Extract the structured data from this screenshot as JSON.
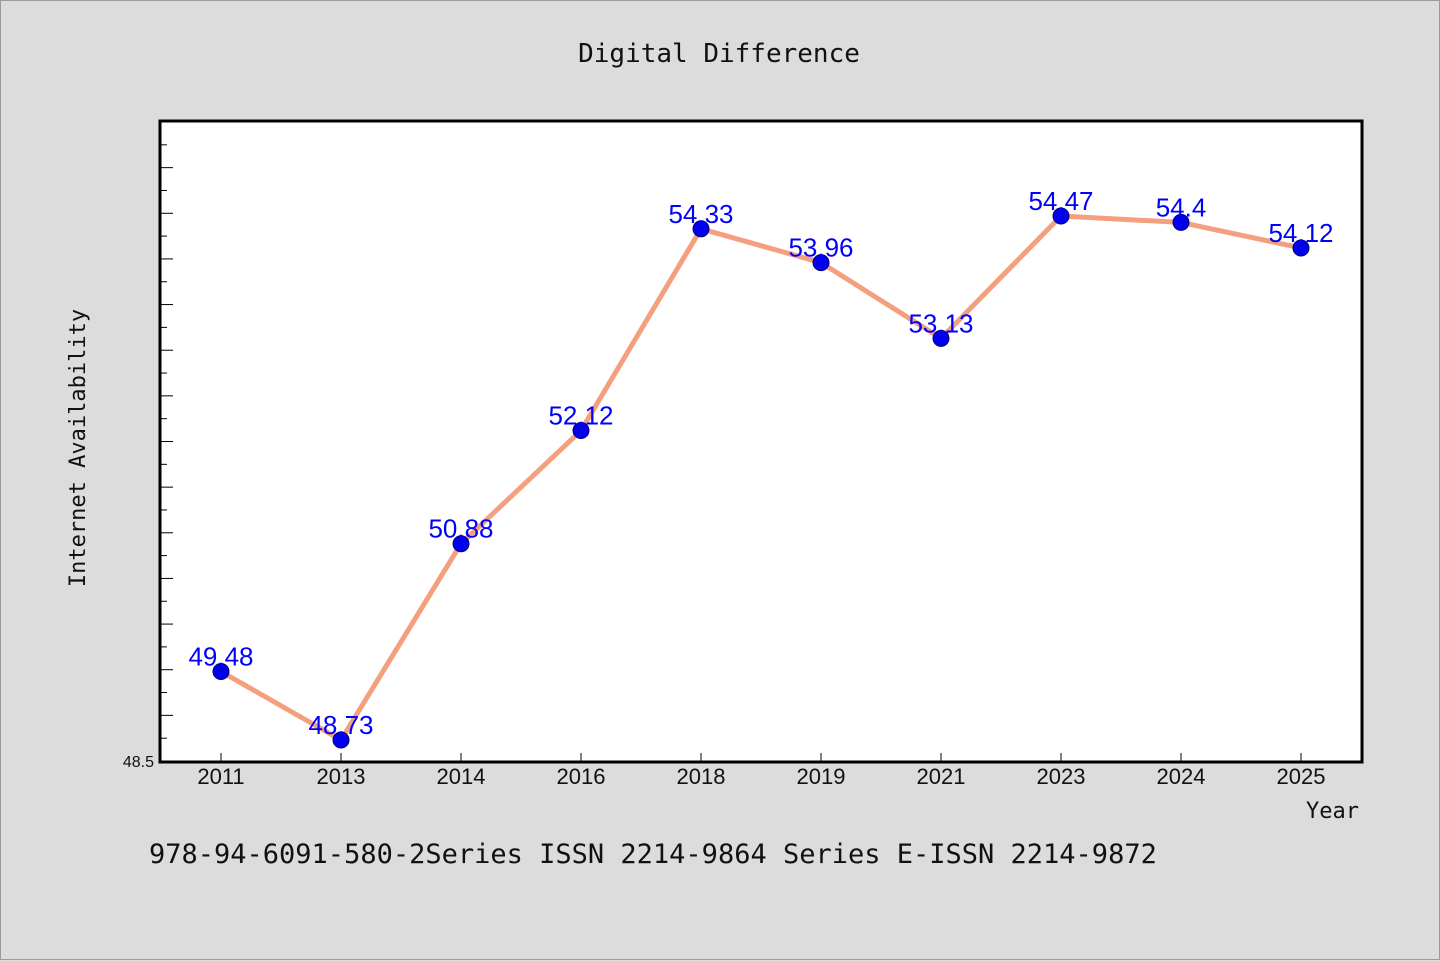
{
  "chart_data": {
    "type": "line",
    "title": "Digital Difference",
    "xlabel": "Year",
    "ylabel": "Internet Availability",
    "categories": [
      "2011",
      "2013",
      "2014",
      "2016",
      "2018",
      "2019",
      "2021",
      "2023",
      "2024",
      "2025"
    ],
    "series": [
      {
        "values": [
          49.48,
          48.73,
          50.88,
          52.12,
          54.33,
          53.96,
          53.13,
          54.47,
          54.4,
          54.12
        ]
      }
    ],
    "data_labels": [
      "49.48",
      "48.73",
      "50.88",
      "52.12",
      "54.33",
      "53.96",
      "53.13",
      "54.47",
      "54.4",
      "54.12"
    ],
    "ylim": [
      48.5,
      55.5
    ],
    "y_tick_labels": [
      "48.5"
    ],
    "grid": false,
    "legend": "none",
    "colors": {
      "line": "#f4a07f",
      "marker": "#0000ee",
      "data_label": "#0000ff",
      "background": "#dcdcdc",
      "plot_area": "#ffffff"
    }
  },
  "footer_text": "978-94-6091-580-2Series ISSN 2214-9864 Series E-ISSN 2214-9872"
}
